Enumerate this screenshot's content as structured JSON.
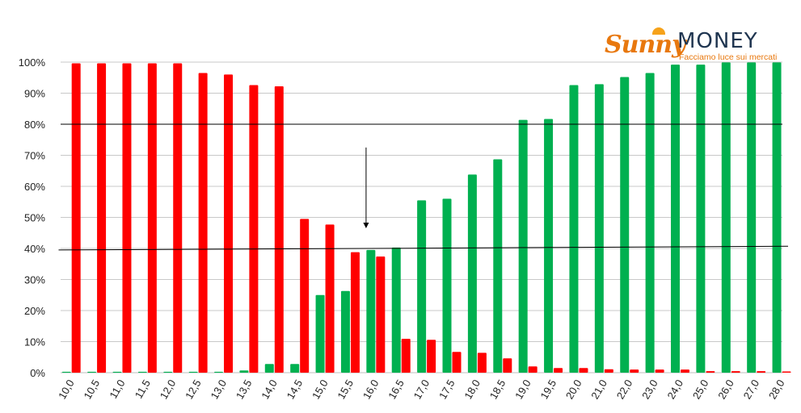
{
  "logo": {
    "brand_left": "Sunny",
    "brand_right": "MONEY",
    "tagline": "Facciamo luce sui mercati"
  },
  "colors": {
    "green": "#00b050",
    "red": "#ff0000",
    "grid": "#c8c8c8",
    "axis": "#bfbfbf",
    "refline": "#000000"
  },
  "chart_data": {
    "type": "bar",
    "categories": [
      "10,0",
      "10,5",
      "11,0",
      "11,5",
      "12,0",
      "12,5",
      "13,0",
      "13,5",
      "14,0",
      "14,5",
      "15,0",
      "15,5",
      "16,0",
      "16,5",
      "17,0",
      "17,5",
      "18,0",
      "18,5",
      "19,0",
      "19,5",
      "20,0",
      "21,0",
      "22,0",
      "23,0",
      "24,0",
      "25,0",
      "26,0",
      "27,0",
      "28,0"
    ],
    "series": [
      {
        "color": "#00b050",
        "values": [
          0.3,
          0.3,
          0.3,
          0.3,
          0.3,
          0.3,
          0.3,
          0.7,
          2.8,
          2.8,
          25,
          26.3,
          39.5,
          40.3,
          55.5,
          56,
          63.8,
          68.7,
          81.4,
          81.7,
          92.6,
          92.9,
          95.2,
          96.5,
          99.2,
          99.2,
          99.9,
          99.9,
          99.9
        ]
      },
      {
        "color": "#ff0000",
        "values": [
          99.6,
          99.6,
          99.6,
          99.6,
          99.6,
          96.5,
          96,
          92.6,
          92.2,
          49.5,
          47.7,
          38.8,
          37.4,
          10.9,
          10.6,
          6.7,
          6.4,
          4.6,
          2,
          1.5,
          1.5,
          1.1,
          1,
          1,
          1,
          0.5,
          0.5,
          0.5,
          0.4
        ]
      }
    ],
    "ylim": [
      0,
      100
    ],
    "yticks": [
      "0%",
      "10%",
      "20%",
      "30%",
      "40%",
      "50%",
      "60%",
      "70%",
      "80%",
      "90%",
      "100%"
    ],
    "grid": true,
    "reference_lines": [
      {
        "kind": "horizontal",
        "y": 80
      },
      {
        "kind": "sloped",
        "from_category": "10,0",
        "y_start": 39.5,
        "to_category": "28,0",
        "y_end": 40.7
      }
    ],
    "annotations": [
      {
        "kind": "arrow-down",
        "category": "16,0",
        "y_from": 72.5,
        "y_to": 46.5
      }
    ]
  }
}
